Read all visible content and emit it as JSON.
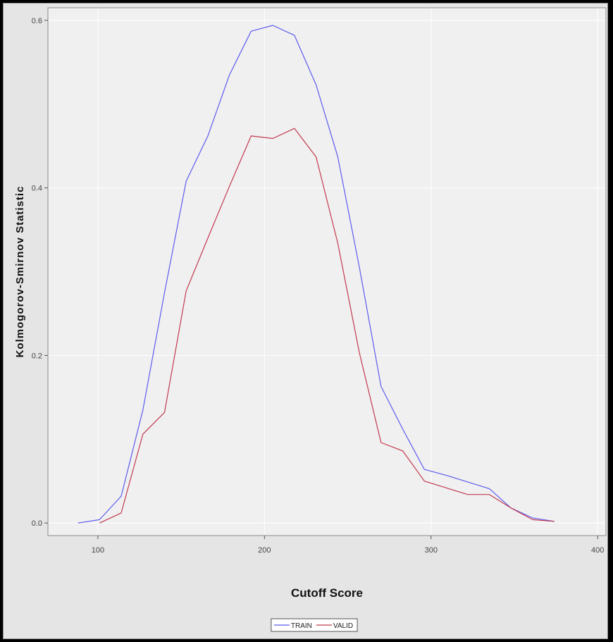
{
  "chart_data": {
    "type": "line",
    "title": "",
    "xlabel": "Cutoff Score",
    "ylabel": "Kolmogorov-Smirnov Statistic",
    "xlim": [
      70,
      405
    ],
    "ylim": [
      -0.015,
      0.615
    ],
    "x_ticks": [
      100,
      200,
      300,
      400
    ],
    "y_ticks": [
      0.0,
      0.2,
      0.4,
      0.6
    ],
    "x_tick_labels": [
      "100",
      "200",
      "300",
      "400"
    ],
    "y_tick_labels": [
      "0.0",
      "0.2",
      "0.4",
      "0.6"
    ],
    "grid": true,
    "legend_position": "bottom-center",
    "series": [
      {
        "name": "TRAIN",
        "color": "#5b5bef",
        "x": [
          88,
          101,
          114,
          127,
          140,
          153,
          166,
          179,
          192,
          205,
          218,
          231,
          244,
          257,
          270,
          283,
          296,
          309,
          322,
          335,
          348,
          361,
          374
        ],
        "y": [
          0.0,
          0.004,
          0.032,
          0.135,
          0.275,
          0.408,
          0.462,
          0.535,
          0.587,
          0.594,
          0.582,
          0.523,
          0.437,
          0.305,
          0.163,
          0.112,
          0.064,
          0.057,
          0.049,
          0.041,
          0.018,
          0.006,
          0.002
        ]
      },
      {
        "name": "VALID",
        "color": "#c2394e",
        "x": [
          101,
          114,
          127,
          140,
          153,
          166,
          179,
          192,
          205,
          218,
          231,
          244,
          257,
          270,
          283,
          296,
          309,
          322,
          335,
          348,
          361,
          374
        ],
        "y": [
          0.0,
          0.012,
          0.106,
          0.132,
          0.277,
          0.34,
          0.402,
          0.462,
          0.459,
          0.471,
          0.437,
          0.334,
          0.203,
          0.096,
          0.086,
          0.05,
          0.042,
          0.034,
          0.034,
          0.018,
          0.004,
          0.002
        ]
      }
    ]
  },
  "colors": {
    "plot_background": "#f0f0f0",
    "outer_background": "#e5e5e5",
    "gridline": "#ffffff",
    "frame": "#8a8a8a"
  }
}
